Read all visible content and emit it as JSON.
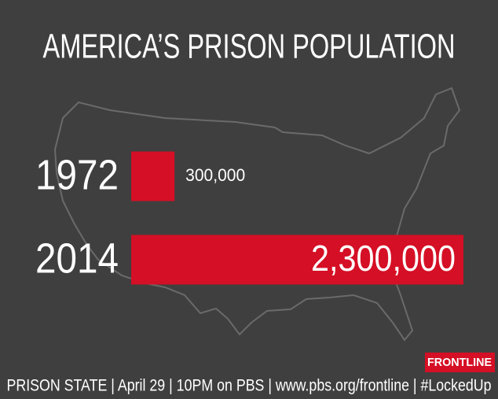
{
  "chart_data": {
    "type": "bar",
    "orientation": "horizontal",
    "title": "AMERICA’S PRISON POPULATION",
    "categories": [
      "1972",
      "2014"
    ],
    "values": [
      300000,
      2300000
    ],
    "value_labels": [
      "300,000",
      "2,300,000"
    ],
    "color": "#d50f25"
  },
  "logo": "FRONTLINE",
  "footer": "PRISON STATE | April 29 | 10PM on PBS | www.pbs.org/frontline | #LockedUp"
}
